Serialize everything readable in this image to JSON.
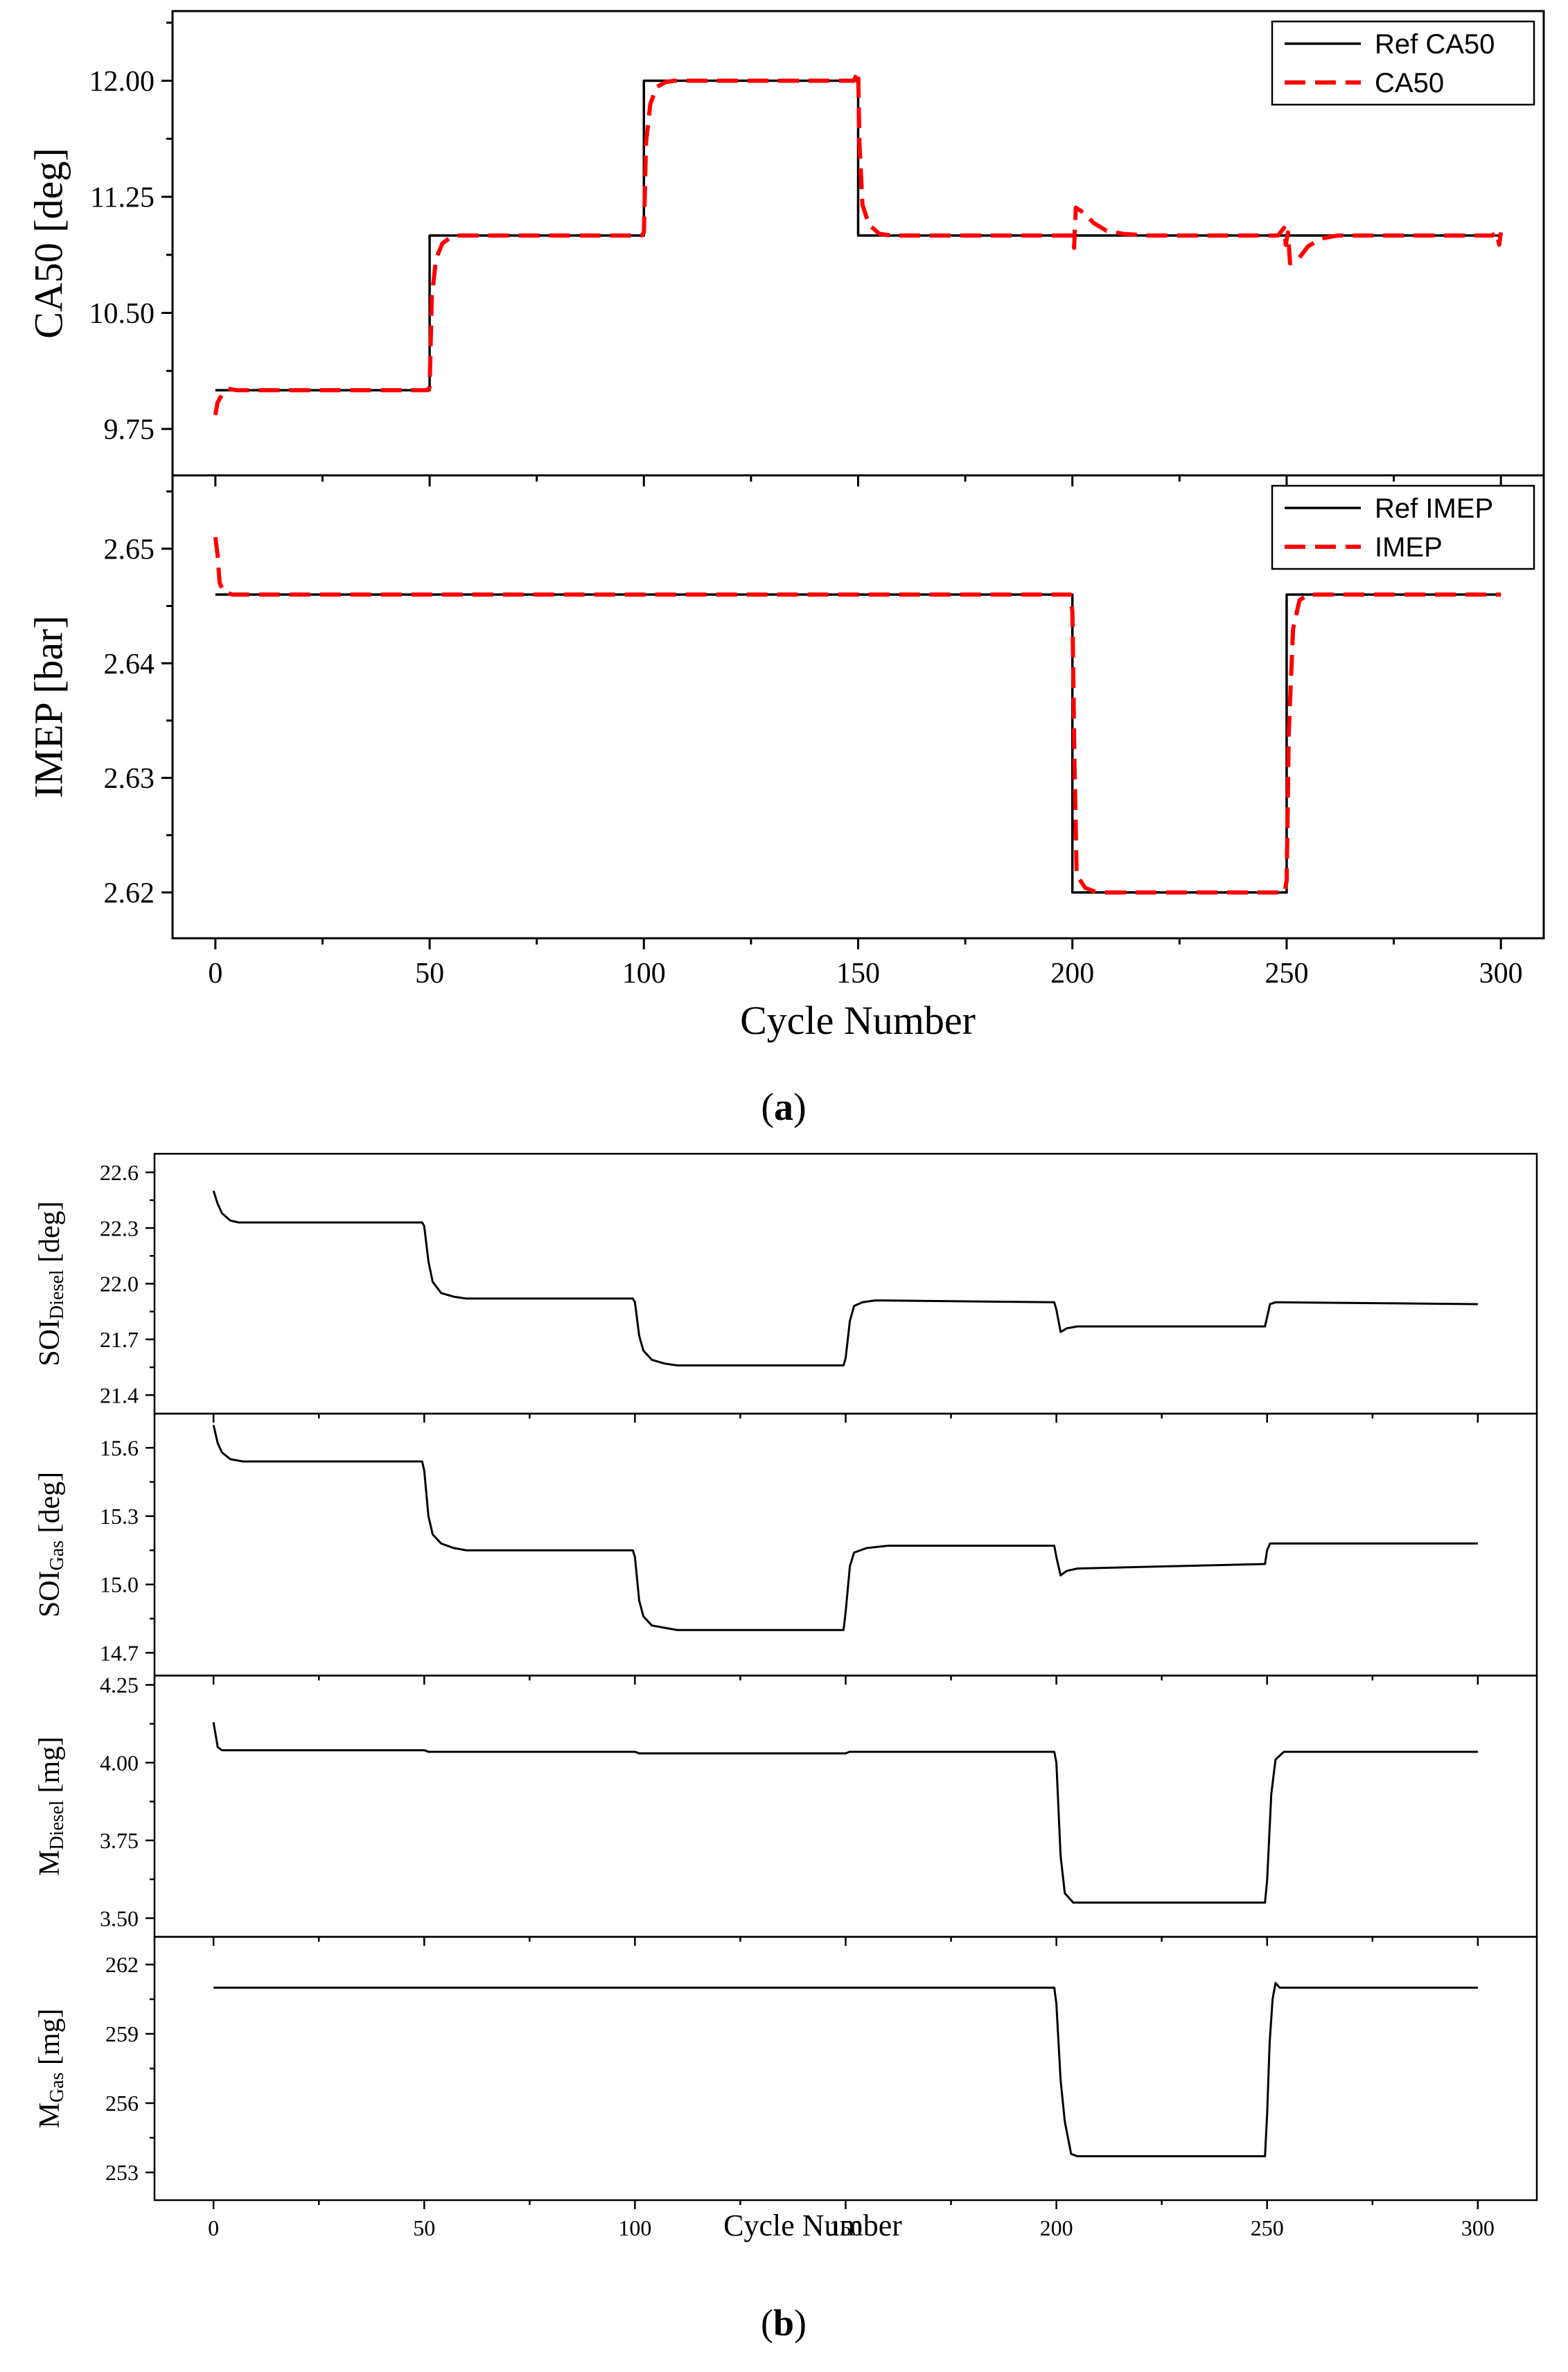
{
  "figure": {
    "panel_a_label": "a",
    "panel_b_label": "b",
    "xlabel_a": "Cycle Number",
    "xlabel_b": "Cycle Number",
    "xticks_a": [
      "0",
      "50",
      "100",
      "150",
      "200",
      "250",
      "300"
    ],
    "xticks_b": [
      "0",
      "50",
      "100",
      "150",
      "200",
      "250",
      "300"
    ]
  },
  "chart_data": [
    {
      "id": "ca50",
      "type": "line",
      "title": "",
      "ylabel": "CA50 [deg]",
      "xlim": [
        -10,
        310
      ],
      "ylim": [
        9.45,
        12.45
      ],
      "yticks": [
        9.75,
        10.5,
        11.25,
        12.0
      ],
      "ytick_labels": [
        "9.75",
        "10.50",
        "11.25",
        "12.00"
      ],
      "legend_position": "top-right",
      "series": [
        {
          "name": "Ref CA50",
          "color": "#000000",
          "style": "solid",
          "points": [
            [
              0,
              10.0
            ],
            [
              50,
              10.0
            ],
            [
              50,
              11.0
            ],
            [
              100,
              11.0
            ],
            [
              100,
              12.0
            ],
            [
              150,
              12.0
            ],
            [
              150,
              11.0
            ],
            [
              300,
              11.0
            ]
          ]
        },
        {
          "name": "CA50",
          "color": "#ff0000",
          "style": "dashed",
          "points": [
            [
              0,
              9.84
            ],
            [
              0.5,
              9.92
            ],
            [
              1.5,
              9.97
            ],
            [
              3,
              10.01
            ],
            [
              5,
              10.0
            ],
            [
              20,
              10.0
            ],
            [
              40,
              10.0
            ],
            [
              49.5,
              10.0
            ],
            [
              50,
              10.02
            ],
            [
              50.5,
              10.6
            ],
            [
              51.5,
              10.85
            ],
            [
              53,
              10.95
            ],
            [
              55,
              10.99
            ],
            [
              57,
              11.0
            ],
            [
              99.5,
              11.0
            ],
            [
              100,
              11.02
            ],
            [
              100.5,
              11.6
            ],
            [
              101.5,
              11.85
            ],
            [
              103,
              11.96
            ],
            [
              105,
              11.99
            ],
            [
              107,
              12.0
            ],
            [
              149,
              12.0
            ],
            [
              150,
              12.06
            ],
            [
              150.3,
              11.6
            ],
            [
              151,
              11.2
            ],
            [
              152.5,
              11.07
            ],
            [
              155,
              11.01
            ],
            [
              158,
              11.0
            ],
            [
              200,
              11.0
            ],
            [
              200.4,
              10.92
            ],
            [
              200.8,
              11.18
            ],
            [
              202.5,
              11.15
            ],
            [
              205,
              11.08
            ],
            [
              208,
              11.03
            ],
            [
              212,
              11.01
            ],
            [
              218,
              11.0
            ],
            [
              248,
              11.0
            ],
            [
              249.4,
              11.05
            ],
            [
              249.8,
              10.94
            ],
            [
              250.3,
              11.02
            ],
            [
              250.8,
              10.82
            ],
            [
              252.5,
              10.84
            ],
            [
              255,
              10.93
            ],
            [
              258,
              10.98
            ],
            [
              262,
              11.0
            ],
            [
              298,
              11.0
            ],
            [
              299,
              11.02
            ],
            [
              299.6,
              10.94
            ],
            [
              300,
              11.02
            ]
          ]
        }
      ]
    },
    {
      "id": "imep",
      "type": "line",
      "title": "",
      "ylabel": "IMEP [bar]",
      "xlim": [
        -10,
        310
      ],
      "ylim": [
        2.616,
        2.6564
      ],
      "yticks": [
        2.62,
        2.63,
        2.64,
        2.65
      ],
      "ytick_labels": [
        "2.62",
        "2.63",
        "2.64",
        "2.65"
      ],
      "legend_position": "top-right",
      "series": [
        {
          "name": "Ref IMEP",
          "color": "#000000",
          "style": "solid",
          "points": [
            [
              0,
              2.646
            ],
            [
              200,
              2.646
            ],
            [
              200,
              2.62
            ],
            [
              250,
              2.62
            ],
            [
              250,
              2.646
            ],
            [
              300,
              2.646
            ]
          ]
        },
        {
          "name": "IMEP",
          "color": "#ff0000",
          "style": "dashed",
          "points": [
            [
              0,
              2.651
            ],
            [
              0.5,
              2.6495
            ],
            [
              1,
              2.647
            ],
            [
              2,
              2.6462
            ],
            [
              4,
              2.646
            ],
            [
              199.5,
              2.646
            ],
            [
              200,
              2.6445
            ],
            [
              200.5,
              2.631
            ],
            [
              201,
              2.6215
            ],
            [
              203,
              2.6204
            ],
            [
              205,
              2.6201
            ],
            [
              207,
              2.62
            ],
            [
              249.5,
              2.62
            ],
            [
              250,
              2.621
            ],
            [
              250.5,
              2.634
            ],
            [
              251.5,
              2.643
            ],
            [
              253,
              2.6455
            ],
            [
              255,
              2.646
            ],
            [
              300,
              2.646
            ]
          ]
        }
      ]
    },
    {
      "id": "soi_diesel",
      "type": "line",
      "ylabel_main": "SOI",
      "ylabel_sub": "Diesel",
      "ylabel_unit": " [deg]",
      "xlim": [
        -14,
        314
      ],
      "ylim": [
        21.3,
        22.7
      ],
      "yticks": [
        21.4,
        21.7,
        22.0,
        22.3,
        22.6
      ],
      "ytick_labels": [
        "21.4",
        "21.7",
        "22.0",
        "22.3",
        "22.6"
      ],
      "series": [
        {
          "name": "SOI Diesel",
          "color": "#000000",
          "style": "solid",
          "points": [
            [
              0,
              22.5
            ],
            [
              1,
              22.43
            ],
            [
              2,
              22.38
            ],
            [
              4,
              22.34
            ],
            [
              6,
              22.33
            ],
            [
              49.5,
              22.33
            ],
            [
              50,
              22.31
            ],
            [
              51,
              22.12
            ],
            [
              52,
              22.01
            ],
            [
              54,
              21.95
            ],
            [
              57,
              21.93
            ],
            [
              60,
              21.92
            ],
            [
              99.5,
              21.92
            ],
            [
              100,
              21.9
            ],
            [
              101,
              21.72
            ],
            [
              102,
              21.64
            ],
            [
              104,
              21.59
            ],
            [
              107,
              21.57
            ],
            [
              110,
              21.56
            ],
            [
              149.5,
              21.56
            ],
            [
              150,
              21.6
            ],
            [
              151,
              21.8
            ],
            [
              152,
              21.88
            ],
            [
              154,
              21.9
            ],
            [
              157,
              21.91
            ],
            [
              199.5,
              21.9
            ],
            [
              200,
              21.86
            ],
            [
              201,
              21.74
            ],
            [
              202.5,
              21.76
            ],
            [
              205,
              21.77
            ],
            [
              249.5,
              21.77
            ],
            [
              250,
              21.82
            ],
            [
              250.7,
              21.89
            ],
            [
              252,
              21.9
            ],
            [
              300,
              21.89
            ]
          ]
        }
      ]
    },
    {
      "id": "soi_gas",
      "type": "line",
      "ylabel_main": "SOI",
      "ylabel_sub": "Gas",
      "ylabel_unit": " [deg]",
      "xlim": [
        -14,
        314
      ],
      "ylim": [
        14.6,
        15.75
      ],
      "yticks": [
        14.7,
        15.0,
        15.3,
        15.6
      ],
      "ytick_labels": [
        "14.7",
        "15.0",
        "15.3",
        "15.6"
      ],
      "series": [
        {
          "name": "SOI Gas",
          "color": "#000000",
          "style": "solid",
          "points": [
            [
              0,
              15.7
            ],
            [
              1,
              15.62
            ],
            [
              2,
              15.58
            ],
            [
              4,
              15.55
            ],
            [
              7,
              15.54
            ],
            [
              49.5,
              15.54
            ],
            [
              50,
              15.5
            ],
            [
              51,
              15.3
            ],
            [
              52,
              15.22
            ],
            [
              54,
              15.18
            ],
            [
              57,
              15.16
            ],
            [
              60,
              15.15
            ],
            [
              99.5,
              15.15
            ],
            [
              100,
              15.12
            ],
            [
              101,
              14.93
            ],
            [
              102,
              14.86
            ],
            [
              104,
              14.82
            ],
            [
              107,
              14.81
            ],
            [
              110,
              14.8
            ],
            [
              149.5,
              14.8
            ],
            [
              150,
              14.88
            ],
            [
              151,
              15.08
            ],
            [
              152,
              15.14
            ],
            [
              155,
              15.16
            ],
            [
              160,
              15.17
            ],
            [
              199.5,
              15.17
            ],
            [
              200,
              15.12
            ],
            [
              201,
              15.04
            ],
            [
              202.5,
              15.06
            ],
            [
              205,
              15.07
            ],
            [
              249.5,
              15.09
            ],
            [
              250,
              15.15
            ],
            [
              250.7,
              15.18
            ],
            [
              300,
              15.18
            ]
          ]
        }
      ]
    },
    {
      "id": "m_diesel",
      "type": "line",
      "ylabel_main": "M",
      "ylabel_sub": "Diesel",
      "ylabel_unit": " [mg]",
      "xlim": [
        -14,
        314
      ],
      "ylim": [
        3.44,
        4.28
      ],
      "yticks": [
        3.5,
        3.75,
        4.0,
        4.25
      ],
      "ytick_labels": [
        "3.50",
        "3.75",
        "4.00",
        "4.25"
      ],
      "series": [
        {
          "name": "M Diesel",
          "color": "#000000",
          "style": "solid",
          "points": [
            [
              0,
              4.13
            ],
            [
              0.5,
              4.09
            ],
            [
              1,
              4.05
            ],
            [
              2,
              4.04
            ],
            [
              50,
              4.04
            ],
            [
              51,
              4.035
            ],
            [
              100,
              4.035
            ],
            [
              101,
              4.03
            ],
            [
              150,
              4.03
            ],
            [
              151,
              4.035
            ],
            [
              199.5,
              4.035
            ],
            [
              200,
              4.0
            ],
            [
              201,
              3.7
            ],
            [
              202,
              3.58
            ],
            [
              204,
              3.55
            ],
            [
              249.5,
              3.55
            ],
            [
              250,
              3.62
            ],
            [
              251,
              3.9
            ],
            [
              252,
              4.01
            ],
            [
              254,
              4.035
            ],
            [
              300,
              4.035
            ]
          ]
        }
      ]
    },
    {
      "id": "m_gas",
      "type": "line",
      "ylabel_main": "M",
      "ylabel_sub": "Gas",
      "ylabel_unit": " [mg]",
      "xlim": [
        -14,
        314
      ],
      "ylim": [
        251.8,
        263.2
      ],
      "yticks": [
        253,
        256,
        259,
        262
      ],
      "ytick_labels": [
        "253",
        "256",
        "259",
        "262"
      ],
      "series": [
        {
          "name": "M Gas",
          "color": "#000000",
          "style": "solid",
          "points": [
            [
              0,
              261.0
            ],
            [
              199.5,
              261.0
            ],
            [
              200,
              260.3
            ],
            [
              201,
              257.0
            ],
            [
              202,
              255.2
            ],
            [
              203.5,
              253.8
            ],
            [
              205,
              253.7
            ],
            [
              249.5,
              253.7
            ],
            [
              250,
              255.5
            ],
            [
              250.6,
              258.6
            ],
            [
              251.3,
              260.5
            ],
            [
              252,
              261.2
            ],
            [
              253,
              261.0
            ],
            [
              300,
              261.0
            ]
          ]
        }
      ]
    }
  ]
}
